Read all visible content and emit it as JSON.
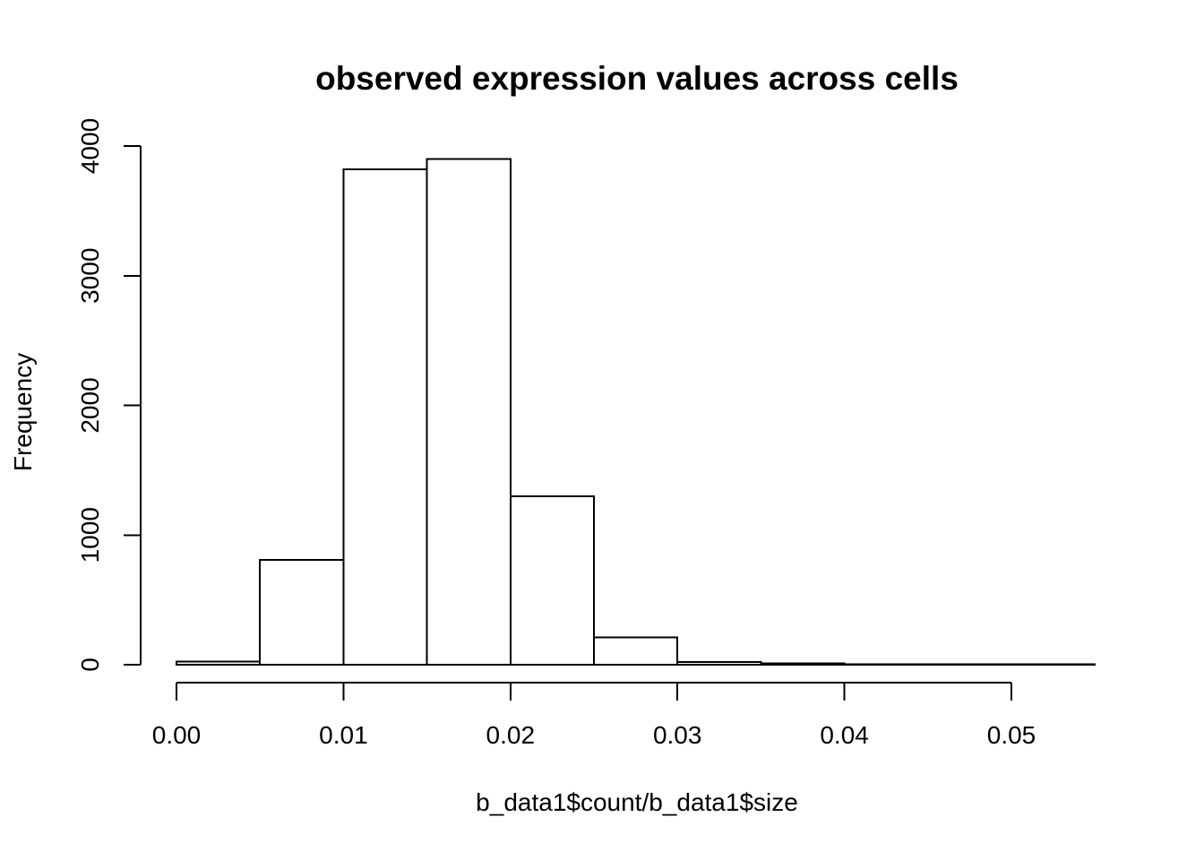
{
  "figure": {
    "background": "#ffffff",
    "line_color": "#000000",
    "bar_fill": "#ffffff",
    "bar_stroke": "#000000"
  },
  "chart_data": {
    "type": "bar",
    "subtype": "histogram",
    "title": "observed expression values across cells",
    "xlabel": "b_data1$count/b_data1$size",
    "ylabel": "Frequency",
    "grid": false,
    "legend": null,
    "xlim": [
      0,
      0.055
    ],
    "ylim": [
      0,
      4000
    ],
    "bin_width": 0.005,
    "bin_edges": [
      0.0,
      0.005,
      0.01,
      0.015,
      0.02,
      0.025,
      0.03,
      0.035,
      0.04,
      0.045,
      0.05,
      0.055
    ],
    "counts": [
      25,
      810,
      3820,
      3900,
      1300,
      210,
      20,
      10,
      5,
      4,
      3
    ],
    "x_ticks": [
      {
        "value": 0.0,
        "label": "0.00"
      },
      {
        "value": 0.01,
        "label": "0.01"
      },
      {
        "value": 0.02,
        "label": "0.02"
      },
      {
        "value": 0.03,
        "label": "0.03"
      },
      {
        "value": 0.04,
        "label": "0.04"
      },
      {
        "value": 0.05,
        "label": "0.05"
      }
    ],
    "y_ticks": [
      {
        "value": 0,
        "label": "0"
      },
      {
        "value": 1000,
        "label": "1000"
      },
      {
        "value": 2000,
        "label": "2000"
      },
      {
        "value": 3000,
        "label": "3000"
      },
      {
        "value": 4000,
        "label": "4000"
      }
    ]
  }
}
